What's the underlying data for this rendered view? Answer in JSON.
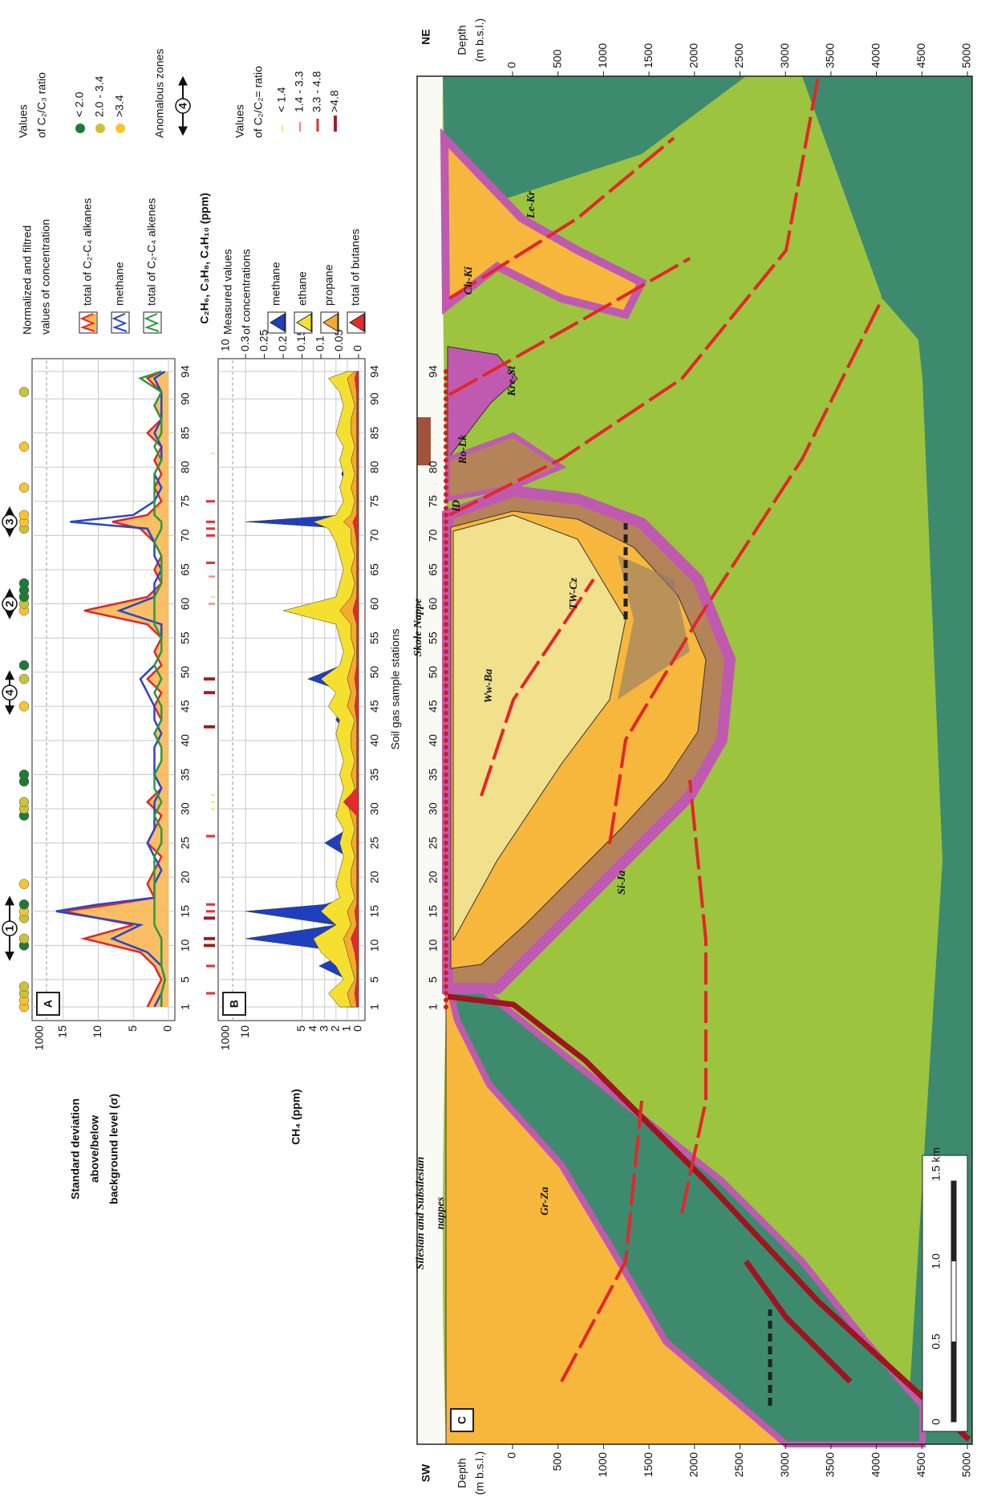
{
  "chart_data": [
    {
      "type": "line",
      "label": "A",
      "y_label": [
        "Standard deviation",
        "above/below",
        "background level (σ)"
      ],
      "y_break_label": "1000",
      "legend_title": [
        "Normalized and filtred",
        "values of concentration"
      ],
      "xlim": [
        1,
        94
      ],
      "xticks": [
        1,
        5,
        10,
        15,
        20,
        25,
        30,
        35,
        40,
        45,
        50,
        55,
        60,
        65,
        70,
        75,
        80,
        85,
        90,
        94
      ],
      "ylim": [
        0,
        16
      ],
      "yticks": [
        0,
        5,
        10,
        15
      ],
      "grid": true,
      "x": [
        1,
        3,
        5,
        7,
        9,
        11,
        13,
        15,
        16,
        17,
        19,
        21,
        23,
        25,
        27,
        29,
        31,
        33,
        35,
        37,
        39,
        41,
        43,
        45,
        47,
        49,
        51,
        53,
        55,
        57,
        59,
        61,
        63,
        65,
        67,
        69,
        71,
        72,
        73,
        75,
        77,
        79,
        81,
        83,
        85,
        87,
        89,
        91,
        93,
        94
      ],
      "series": [
        {
          "name": "total of C₂-C₄ alkanes",
          "color": "#e0262b",
          "area_fill": "#f9b44a",
          "values": [
            3,
            2,
            1,
            2,
            4,
            12,
            5,
            15,
            8,
            2,
            3,
            2,
            1,
            3,
            2,
            1,
            3,
            1,
            2,
            1,
            1,
            2,
            1,
            2,
            1,
            3,
            1,
            2,
            1,
            3,
            12,
            3,
            1,
            2,
            1,
            2,
            4,
            8,
            3,
            1,
            2,
            1,
            2,
            1,
            3,
            1,
            2,
            1,
            3,
            1
          ]
        },
        {
          "name": "methane",
          "color": "#2a45c8",
          "values": [
            2,
            1,
            0.5,
            1,
            3,
            8,
            4,
            16,
            10,
            2,
            2,
            1,
            2,
            3,
            2,
            2,
            2,
            1,
            2,
            2,
            2,
            1,
            2,
            2,
            3,
            4,
            2,
            1,
            1,
            1,
            7,
            2,
            2,
            1,
            2,
            2,
            3,
            14,
            5,
            2,
            1,
            2,
            1,
            1,
            2,
            1,
            1,
            1,
            2,
            0.5
          ]
        },
        {
          "name": "total of C₂-C₄ alkenes",
          "color": "#2a9a3a",
          "values": [
            1,
            1,
            0.5,
            1,
            1,
            1,
            2,
            2,
            2,
            2,
            2,
            2,
            2,
            1,
            1,
            2,
            1,
            2,
            2,
            1,
            1,
            2,
            1,
            1,
            2,
            1,
            2,
            1,
            1,
            2,
            2,
            2,
            1,
            1,
            1,
            2,
            1,
            1,
            2,
            2,
            2,
            2,
            1,
            2,
            1,
            1,
            2,
            1,
            4,
            1
          ]
        }
      ]
    },
    {
      "type": "area",
      "label": "B",
      "y_label": "CH₄ (ppm)",
      "y2_label": "C₂H₆, C₃H₈, C₄H₁₀ (ppm)",
      "x_label": "Soil gas sample stations",
      "y_break_label": "1000",
      "y2_break_label": "10",
      "legend_title": [
        "Measured values",
        "of concentrations"
      ],
      "xlim": [
        1,
        94
      ],
      "xticks": [
        1,
        5,
        10,
        15,
        20,
        25,
        30,
        35,
        40,
        45,
        50,
        55,
        60,
        65,
        70,
        75,
        80,
        85,
        90,
        94
      ],
      "ylim": [
        0,
        11
      ],
      "yticks": [
        0,
        1,
        2,
        3,
        4,
        5,
        10
      ],
      "y2lim": [
        0,
        0.33
      ],
      "y2ticks": [
        0,
        0.05,
        0.1,
        0.15,
        0.2,
        0.25,
        0.3
      ],
      "grid": true,
      "x": [
        1,
        3,
        5,
        7,
        9,
        11,
        13,
        15,
        16,
        17,
        19,
        21,
        23,
        25,
        27,
        29,
        31,
        33,
        35,
        37,
        39,
        41,
        43,
        45,
        47,
        49,
        51,
        53,
        55,
        57,
        59,
        61,
        63,
        65,
        67,
        69,
        71,
        72,
        73,
        75,
        77,
        79,
        81,
        83,
        85,
        87,
        89,
        91,
        93,
        94
      ],
      "series": [
        {
          "name": "methane",
          "color": "#1f3fbf",
          "axis": "y",
          "values": [
            1,
            2,
            1,
            3.5,
            1,
            10,
            2,
            10,
            3,
            1,
            1,
            1.5,
            1,
            3,
            1,
            1,
            1.5,
            1,
            1,
            1,
            1.5,
            1,
            2,
            1.5,
            1,
            4.5,
            1.5,
            1,
            1,
            1.5,
            3.5,
            1,
            1.5,
            1,
            1.5,
            1,
            1,
            10,
            1.5,
            1,
            1,
            1.5,
            1,
            1,
            1,
            1.5,
            1,
            1,
            1.5,
            0.5
          ]
        },
        {
          "name": "ethane",
          "color": "#f5e030",
          "axis": "y2",
          "values": [
            0.05,
            0.08,
            0.04,
            0.06,
            0.1,
            0.12,
            0.06,
            0.1,
            0.08,
            0.05,
            0.06,
            0.05,
            0.04,
            0.05,
            0.04,
            0.06,
            0.05,
            0.04,
            0.05,
            0.04,
            0.05,
            0.06,
            0.05,
            0.08,
            0.06,
            0.1,
            0.05,
            0.04,
            0.05,
            0.06,
            0.2,
            0.06,
            0.05,
            0.04,
            0.05,
            0.06,
            0.08,
            0.12,
            0.06,
            0.04,
            0.05,
            0.04,
            0.05,
            0.04,
            0.06,
            0.05,
            0.04,
            0.05,
            0.08,
            0.03
          ]
        },
        {
          "name": "propane",
          "color": "#f7a82e",
          "axis": "y2",
          "values": [
            0.02,
            0.03,
            0.01,
            0.02,
            0.03,
            0.04,
            0.02,
            0.03,
            0.02,
            0.01,
            0.02,
            0.02,
            0.01,
            0.02,
            0.01,
            0.02,
            0.03,
            0.01,
            0.02,
            0.01,
            0.02,
            0.02,
            0.01,
            0.03,
            0.02,
            0.03,
            0.02,
            0.01,
            0.02,
            0.02,
            0.05,
            0.02,
            0.01,
            0.02,
            0.01,
            0.02,
            0.02,
            0.04,
            0.02,
            0.01,
            0.02,
            0.01,
            0.02,
            0.01,
            0.02,
            0.02,
            0.01,
            0.02,
            0.03,
            0.01
          ]
        },
        {
          "name": "total of butanes",
          "color": "#e32b2b",
          "axis": "y2",
          "values": [
            0.005,
            0.01,
            0.005,
            0.005,
            0.01,
            0.02,
            0.005,
            0.01,
            0.005,
            0.005,
            0.005,
            0.005,
            0.005,
            0.005,
            0.005,
            0.005,
            0.04,
            0.005,
            0.005,
            0.005,
            0.005,
            0.005,
            0.005,
            0.01,
            0.005,
            0.01,
            0.005,
            0.005,
            0.005,
            0.005,
            0.015,
            0.005,
            0.005,
            0.005,
            0.005,
            0.005,
            0.01,
            0.015,
            0.005,
            0.005,
            0.005,
            0.005,
            0.005,
            0.005,
            0.005,
            0.005,
            0.005,
            0.005,
            0.01,
            0.005
          ]
        }
      ]
    }
  ],
  "c2c3_ratio": {
    "title": [
      "Values",
      "of C₂/C₃ ratio"
    ],
    "items": [
      {
        "label": "< 2.0",
        "color": "#1f7a35"
      },
      {
        "label": "2.0 - 3.4",
        "color": "#c9c23a"
      },
      {
        "label": ">3.4",
        "color": "#f5c431"
      }
    ],
    "stations": [
      1,
      2,
      3,
      4,
      10,
      11,
      14,
      15,
      16,
      19,
      29,
      30,
      31,
      34,
      35,
      45,
      49,
      51,
      59,
      60,
      61,
      62,
      63,
      71,
      72,
      73,
      77,
      83,
      91
    ],
    "classes": [
      2,
      2,
      1,
      1,
      0,
      1,
      1,
      2,
      0,
      2,
      0,
      1,
      1,
      0,
      0,
      2,
      1,
      0,
      2,
      1,
      0,
      0,
      0,
      1,
      2,
      2,
      2,
      2,
      1
    ]
  },
  "c2c2_ratio": {
    "title": [
      "Values",
      "of C₂/C₂= ratio"
    ],
    "items": [
      {
        "label": "< 1.4",
        "color": "#f5e14a"
      },
      {
        "label": "1.4 - 3.3",
        "color": "#f08a7a"
      },
      {
        "label": "3.3 - 4.8",
        "color": "#e2343a"
      },
      {
        "label": ">4.8",
        "color": "#9e1b20"
      }
    ],
    "stations": [
      3,
      7,
      10,
      11,
      14,
      15,
      16,
      26,
      30,
      31,
      32,
      42,
      47,
      49,
      60,
      61,
      64,
      66,
      70,
      71,
      72,
      75,
      82
    ],
    "classes": [
      2,
      2,
      3,
      3,
      3,
      2,
      2,
      2,
      0,
      0,
      0,
      3,
      3,
      3,
      1,
      0,
      1,
      2,
      2,
      2,
      2,
      2,
      0
    ]
  },
  "anomalous_zones": {
    "title": "Anomalous zones",
    "legend_symbol": "4",
    "zones": [
      {
        "label": "1",
        "from": 8,
        "to": 17
      },
      {
        "label": "4",
        "from": 44,
        "to": 50
      },
      {
        "label": "2",
        "from": 58,
        "to": 62
      },
      {
        "label": "3",
        "from": 70,
        "to": 74
      }
    ]
  },
  "cross_section": {
    "label": "C",
    "left_end": "SW",
    "right_end": "NE",
    "depth_title": [
      "Depth",
      "(m b.s.l.)"
    ],
    "depth_lim": [
      0,
      5000
    ],
    "depth_ticks": [
      0,
      500,
      1000,
      1500,
      2000,
      2500,
      3000,
      3500,
      4000,
      4500,
      5000
    ],
    "station_labels": [
      1,
      5,
      10,
      15,
      20,
      25,
      30,
      35,
      40,
      45,
      50,
      55,
      60,
      65,
      70,
      75,
      80,
      94
    ],
    "nappes": [
      "Skole Nappe",
      "Silesian and Subsilesian",
      "nappes"
    ],
    "units": [
      "Gr-Za",
      "Si-Ja",
      "Ww-Ba",
      "lD",
      "TW-Cz",
      "Ro-Lk",
      "Kre-St",
      "Ch-Ki",
      "Le-Kr"
    ],
    "scale_bar": [
      "0",
      "0.5",
      "1.0",
      "1.5 km"
    ]
  }
}
